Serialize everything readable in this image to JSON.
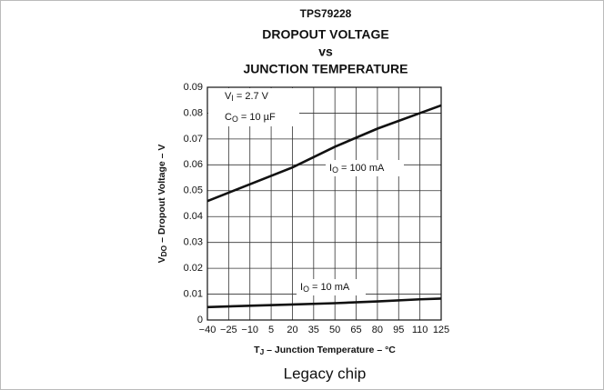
{
  "chart_data": {
    "type": "line",
    "title": [
      "TPS79228",
      "DROPOUT VOLTAGE",
      "vs",
      "JUNCTION TEMPERATURE"
    ],
    "x_label": "TJ – Junction Temperature – °C",
    "y_label": "VDO – Dropout Voltage – V",
    "caption": "Legacy chip",
    "annotations": [
      "VI = 2.7 V",
      "CO = 10 µF"
    ],
    "x": [
      -40,
      -10,
      20,
      50,
      80,
      110,
      125
    ],
    "series": [
      {
        "name": "IO = 100 mA",
        "color": "#111111",
        "values": [
          0.046,
          0.0525,
          0.059,
          0.067,
          0.074,
          0.08,
          0.083
        ]
      },
      {
        "name": "IO = 10 mA",
        "color": "#111111",
        "values": [
          0.005,
          0.0055,
          0.006,
          0.0065,
          0.0072,
          0.008,
          0.0083
        ]
      }
    ],
    "xlim": [
      -40,
      125
    ],
    "xticks": [
      {
        "value": -40,
        "label": "−40"
      },
      {
        "value": -25,
        "label": "−25"
      },
      {
        "value": -10,
        "label": "−10"
      },
      5,
      20,
      35,
      50,
      65,
      80,
      95,
      110,
      125
    ],
    "ylim": [
      0,
      0.09
    ],
    "yticks": [
      0,
      0.01,
      0.02,
      0.03,
      0.04,
      0.05,
      0.06,
      0.07,
      0.08,
      0.09
    ],
    "grid": true
  }
}
